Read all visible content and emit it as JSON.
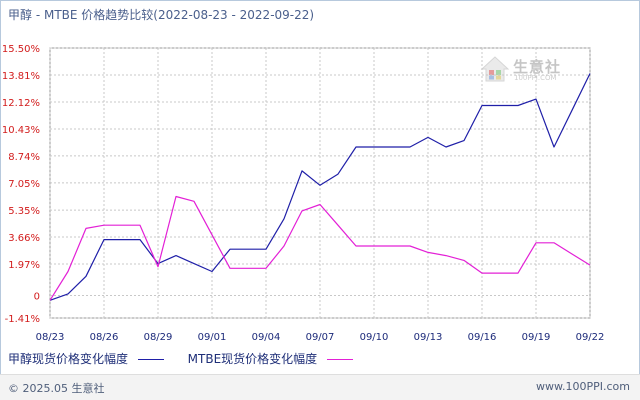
{
  "title": "甲醇 - MTBE 价格趋势比较(2022-08-23 - 2022-09-22)",
  "footer": {
    "copyright": "© 2025.05 生意社",
    "site": "www.100PPI.com"
  },
  "watermark": {
    "text": "生意社",
    "sub": "100PPI.COM"
  },
  "colors": {
    "series1": "#1f1fa8",
    "series2": "#e320d6",
    "grid": "#c8c8c8",
    "tick_y": "#d21c1c",
    "tick_x": "#1c2a7a"
  },
  "chart_data": {
    "type": "line",
    "title": "甲醇 - MTBE 价格趋势比较(2022-08-23 - 2022-09-22)",
    "xlabel": "",
    "ylabel": "",
    "ylim": [
      -1.41,
      15.5
    ],
    "yticks": [
      "15.50%",
      "13.81%",
      "12.12%",
      "10.43%",
      "8.74%",
      "7.05%",
      "5.35%",
      "3.66%",
      "1.97%",
      "0",
      "-1.41%"
    ],
    "yticks_values": [
      15.5,
      13.81,
      12.12,
      10.43,
      8.74,
      7.05,
      5.35,
      3.66,
      1.97,
      0,
      -1.41
    ],
    "xtick_labels": [
      "08/23",
      "08/26",
      "08/29",
      "09/01",
      "09/04",
      "09/07",
      "09/10",
      "09/13",
      "09/16",
      "09/19",
      "09/22"
    ],
    "grid": true,
    "legend_position": "bottom-left",
    "x": [
      "08/23",
      "08/24",
      "08/25",
      "08/26",
      "08/27",
      "08/28",
      "08/29",
      "08/30",
      "08/31",
      "09/01",
      "09/02",
      "09/03",
      "09/04",
      "09/05",
      "09/06",
      "09/07",
      "09/08",
      "09/09",
      "09/10",
      "09/11",
      "09/12",
      "09/13",
      "09/14",
      "09/15",
      "09/16",
      "09/17",
      "09/18",
      "09/19",
      "09/20",
      "09/21",
      "09/22"
    ],
    "series": [
      {
        "name": "甲醇现货价格变化幅度",
        "values": [
          -0.3,
          0.1,
          1.2,
          3.5,
          3.5,
          3.5,
          2.0,
          2.5,
          2.0,
          1.5,
          2.9,
          2.9,
          2.9,
          4.8,
          7.8,
          6.9,
          7.6,
          9.3,
          9.3,
          9.3,
          9.3,
          9.9,
          9.3,
          9.7,
          11.9,
          11.9,
          11.9,
          12.3,
          9.3,
          11.6,
          13.9
        ]
      },
      {
        "name": "MTBE现货价格变化幅度",
        "values": [
          -0.3,
          1.5,
          4.2,
          4.4,
          4.4,
          4.4,
          1.8,
          6.2,
          5.9,
          3.8,
          1.7,
          1.7,
          1.7,
          3.1,
          5.3,
          5.7,
          4.4,
          3.1,
          3.1,
          3.1,
          3.1,
          2.7,
          2.5,
          2.2,
          1.4,
          1.4,
          1.4,
          3.3,
          3.3,
          2.6,
          1.9
        ]
      }
    ]
  }
}
